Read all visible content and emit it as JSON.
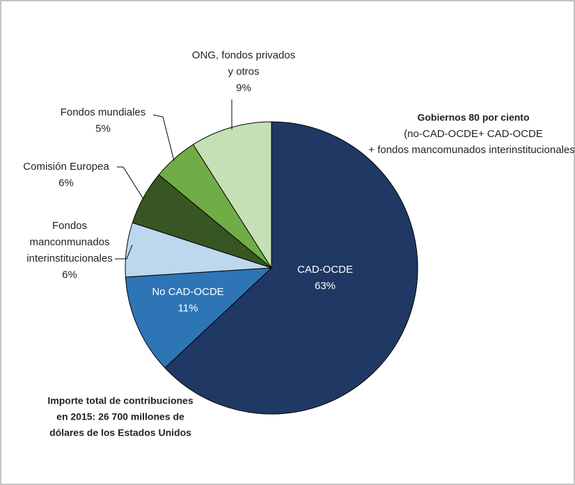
{
  "chart_data": {
    "type": "pie",
    "categories": [
      [
        "CAD-OCDE"
      ],
      [
        "No CAD-OCDE"
      ],
      [
        "Fondos",
        "manconmunados",
        "interinstitucionales"
      ],
      [
        "Comisión Europea"
      ],
      [
        "Fondos mundiales"
      ],
      [
        "ONG, fondos privados",
        "y otros"
      ]
    ],
    "values": [
      63,
      11,
      6,
      6,
      5,
      9
    ],
    "value_labels": [
      "63%",
      "11%",
      "6%",
      "6%",
      "5%",
      "9%"
    ],
    "colors": [
      "#203864",
      "#2e75b6",
      "#bdd7ee",
      "#375623",
      "#70ad47",
      "#c5e0b4"
    ],
    "annotations": [
      [
        "Gobiernos 80 por ciento",
        "(no-CAD-OCDE+ CAD-OCDE",
        "+ fondos mancomunados interinstitucionales)"
      ],
      [
        "Importe total de contribuciones",
        "en 2015: 26 700 millones de",
        "dólares de los Estados Unidos"
      ]
    ]
  }
}
